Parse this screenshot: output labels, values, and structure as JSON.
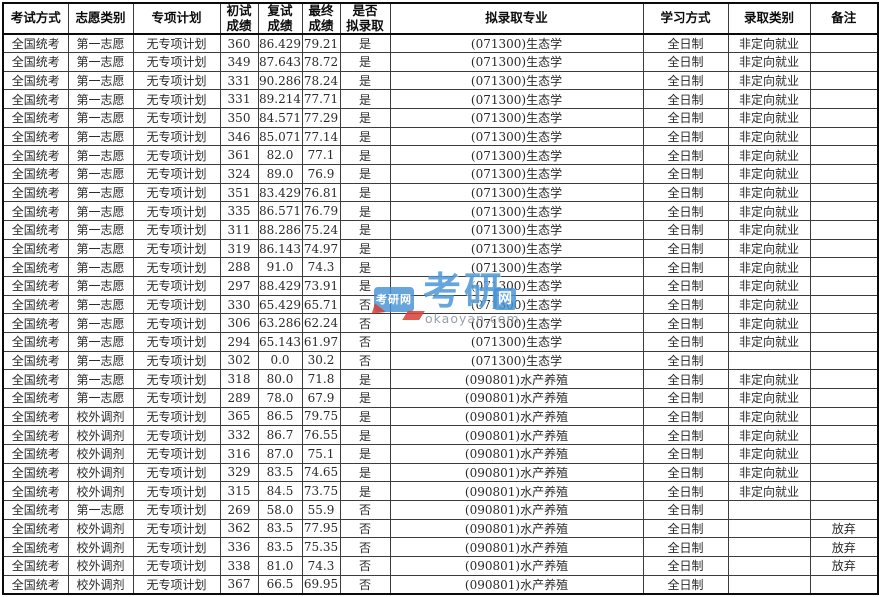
{
  "table": {
    "columns": [
      {
        "key": "exam_method",
        "label": "考试方式"
      },
      {
        "key": "volunteer_type",
        "label": "志愿类别"
      },
      {
        "key": "special_plan",
        "label": "专项计划"
      },
      {
        "key": "initial_score",
        "label": "初试\n成绩"
      },
      {
        "key": "retest_score",
        "label": "复试\n成绩"
      },
      {
        "key": "final_score",
        "label": "最终\n成绩"
      },
      {
        "key": "admitted",
        "label": "是否\n拟录取"
      },
      {
        "key": "major",
        "label": "拟录取专业"
      },
      {
        "key": "study_mode",
        "label": "学习方式"
      },
      {
        "key": "admission_category",
        "label": "录取类别"
      },
      {
        "key": "remarks",
        "label": "备注"
      }
    ],
    "rows": [
      [
        "全国统考",
        "第一志愿",
        "无专项计划",
        "360",
        "86.429",
        "79.21",
        "是",
        "(071300)生态学",
        "全日制",
        "非定向就业",
        ""
      ],
      [
        "全国统考",
        "第一志愿",
        "无专项计划",
        "349",
        "87.643",
        "78.72",
        "是",
        "(071300)生态学",
        "全日制",
        "非定向就业",
        ""
      ],
      [
        "全国统考",
        "第一志愿",
        "无专项计划",
        "331",
        "90.286",
        "78.24",
        "是",
        "(071300)生态学",
        "全日制",
        "非定向就业",
        ""
      ],
      [
        "全国统考",
        "第一志愿",
        "无专项计划",
        "331",
        "89.214",
        "77.71",
        "是",
        "(071300)生态学",
        "全日制",
        "非定向就业",
        ""
      ],
      [
        "全国统考",
        "第一志愿",
        "无专项计划",
        "350",
        "84.571",
        "77.29",
        "是",
        "(071300)生态学",
        "全日制",
        "非定向就业",
        ""
      ],
      [
        "全国统考",
        "第一志愿",
        "无专项计划",
        "346",
        "85.071",
        "77.14",
        "是",
        "(071300)生态学",
        "全日制",
        "非定向就业",
        ""
      ],
      [
        "全国统考",
        "第一志愿",
        "无专项计划",
        "361",
        "82.0",
        "77.1",
        "是",
        "(071300)生态学",
        "全日制",
        "非定向就业",
        ""
      ],
      [
        "全国统考",
        "第一志愿",
        "无专项计划",
        "324",
        "89.0",
        "76.9",
        "是",
        "(071300)生态学",
        "全日制",
        "非定向就业",
        ""
      ],
      [
        "全国统考",
        "第一志愿",
        "无专项计划",
        "351",
        "83.429",
        "76.81",
        "是",
        "(071300)生态学",
        "全日制",
        "非定向就业",
        ""
      ],
      [
        "全国统考",
        "第一志愿",
        "无专项计划",
        "335",
        "86.571",
        "76.79",
        "是",
        "(071300)生态学",
        "全日制",
        "非定向就业",
        ""
      ],
      [
        "全国统考",
        "第一志愿",
        "无专项计划",
        "311",
        "88.286",
        "75.24",
        "是",
        "(071300)生态学",
        "全日制",
        "非定向就业",
        ""
      ],
      [
        "全国统考",
        "第一志愿",
        "无专项计划",
        "319",
        "86.143",
        "74.97",
        "是",
        "(071300)生态学",
        "全日制",
        "非定向就业",
        ""
      ],
      [
        "全国统考",
        "第一志愿",
        "无专项计划",
        "288",
        "91.0",
        "74.3",
        "是",
        "(071300)生态学",
        "全日制",
        "非定向就业",
        ""
      ],
      [
        "全国统考",
        "第一志愿",
        "无专项计划",
        "297",
        "88.429",
        "73.91",
        "是",
        "(071300)生态学",
        "全日制",
        "非定向就业",
        ""
      ],
      [
        "全国统考",
        "第一志愿",
        "无专项计划",
        "330",
        "65.429",
        "65.71",
        "否",
        "(071300)生态学",
        "全日制",
        "非定向就业",
        ""
      ],
      [
        "全国统考",
        "第一志愿",
        "无专项计划",
        "306",
        "63.286",
        "62.24",
        "否",
        "(071300)生态学",
        "全日制",
        "非定向就业",
        ""
      ],
      [
        "全国统考",
        "第一志愿",
        "无专项计划",
        "294",
        "65.143",
        "61.97",
        "否",
        "(071300)生态学",
        "全日制",
        "非定向就业",
        ""
      ],
      [
        "全国统考",
        "第一志愿",
        "无专项计划",
        "302",
        "0.0",
        "30.2",
        "否",
        "(071300)生态学",
        "全日制",
        "",
        ""
      ],
      [
        "全国统考",
        "第一志愿",
        "无专项计划",
        "318",
        "80.0",
        "71.8",
        "是",
        "(090801)水产养殖",
        "全日制",
        "非定向就业",
        ""
      ],
      [
        "全国统考",
        "第一志愿",
        "无专项计划",
        "289",
        "78.0",
        "67.9",
        "是",
        "(090801)水产养殖",
        "全日制",
        "非定向就业",
        ""
      ],
      [
        "全国统考",
        "校外调剂",
        "无专项计划",
        "365",
        "86.5",
        "79.75",
        "是",
        "(090801)水产养殖",
        "全日制",
        "非定向就业",
        ""
      ],
      [
        "全国统考",
        "校外调剂",
        "无专项计划",
        "332",
        "86.7",
        "76.55",
        "是",
        "(090801)水产养殖",
        "全日制",
        "非定向就业",
        ""
      ],
      [
        "全国统考",
        "校外调剂",
        "无专项计划",
        "316",
        "87.0",
        "75.1",
        "是",
        "(090801)水产养殖",
        "全日制",
        "非定向就业",
        ""
      ],
      [
        "全国统考",
        "校外调剂",
        "无专项计划",
        "329",
        "83.5",
        "74.65",
        "是",
        "(090801)水产养殖",
        "全日制",
        "非定向就业",
        ""
      ],
      [
        "全国统考",
        "校外调剂",
        "无专项计划",
        "315",
        "84.5",
        "73.75",
        "是",
        "(090801)水产养殖",
        "全日制",
        "非定向就业",
        ""
      ],
      [
        "全国统考",
        "第一志愿",
        "无专项计划",
        "269",
        "58.0",
        "55.9",
        "否",
        "(090801)水产养殖",
        "全日制",
        "",
        ""
      ],
      [
        "全国统考",
        "校外调剂",
        "无专项计划",
        "362",
        "83.5",
        "77.95",
        "否",
        "(090801)水产养殖",
        "全日制",
        "",
        "放弃"
      ],
      [
        "全国统考",
        "校外调剂",
        "无专项计划",
        "336",
        "83.5",
        "75.35",
        "否",
        "(090801)水产养殖",
        "全日制",
        "",
        "放弃"
      ],
      [
        "全国统考",
        "校外调剂",
        "无专项计划",
        "338",
        "81.0",
        "74.3",
        "否",
        "(090801)水产养殖",
        "全日制",
        "",
        "放弃"
      ],
      [
        "全国统考",
        "校外调剂",
        "无专项计划",
        "367",
        "66.5",
        "69.95",
        "否",
        "(090801)水产养殖",
        "全日制",
        "",
        ""
      ]
    ]
  },
  "watermark": {
    "logo_small_text": "考研网",
    "logo_large_text": "考研",
    "logo_net_text": "网",
    "site_text": "okaoyan.com",
    "blue": "#4593d6",
    "red": "#d94034",
    "gray": "#949da4"
  }
}
